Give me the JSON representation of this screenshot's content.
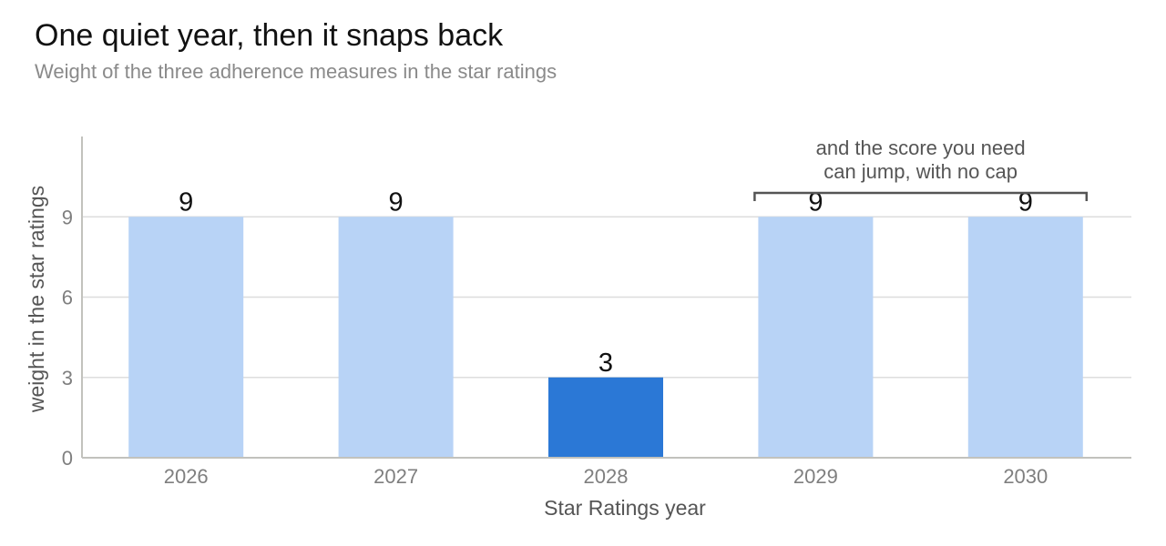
{
  "title": "One quiet year, then it snaps back",
  "subtitle": "Weight of the three adherence measures in the star ratings",
  "chart_data": {
    "type": "bar",
    "title": "One quiet year, then it snaps back",
    "subtitle": "Weight of the three adherence measures in the star ratings",
    "xlabel": "Star Ratings year",
    "ylabel": "weight in the star ratings",
    "categories": [
      "2026",
      "2027",
      "2028",
      "2029",
      "2030"
    ],
    "values": [
      9,
      9,
      3,
      9,
      9
    ],
    "ylim": [
      0,
      12
    ],
    "yticks": [
      0,
      3,
      6,
      9
    ],
    "grid": true,
    "colors": {
      "bar": "#b8d3f6",
      "highlight": "#2b78d6",
      "grid": "#dddddd",
      "axis": "#c2c2bd",
      "bracket": "#555555"
    },
    "highlight_category": "2028",
    "annotation": {
      "lines": [
        "and the score you need",
        "can jump, with no cap"
      ],
      "spans": [
        "2029",
        "2030"
      ]
    }
  }
}
